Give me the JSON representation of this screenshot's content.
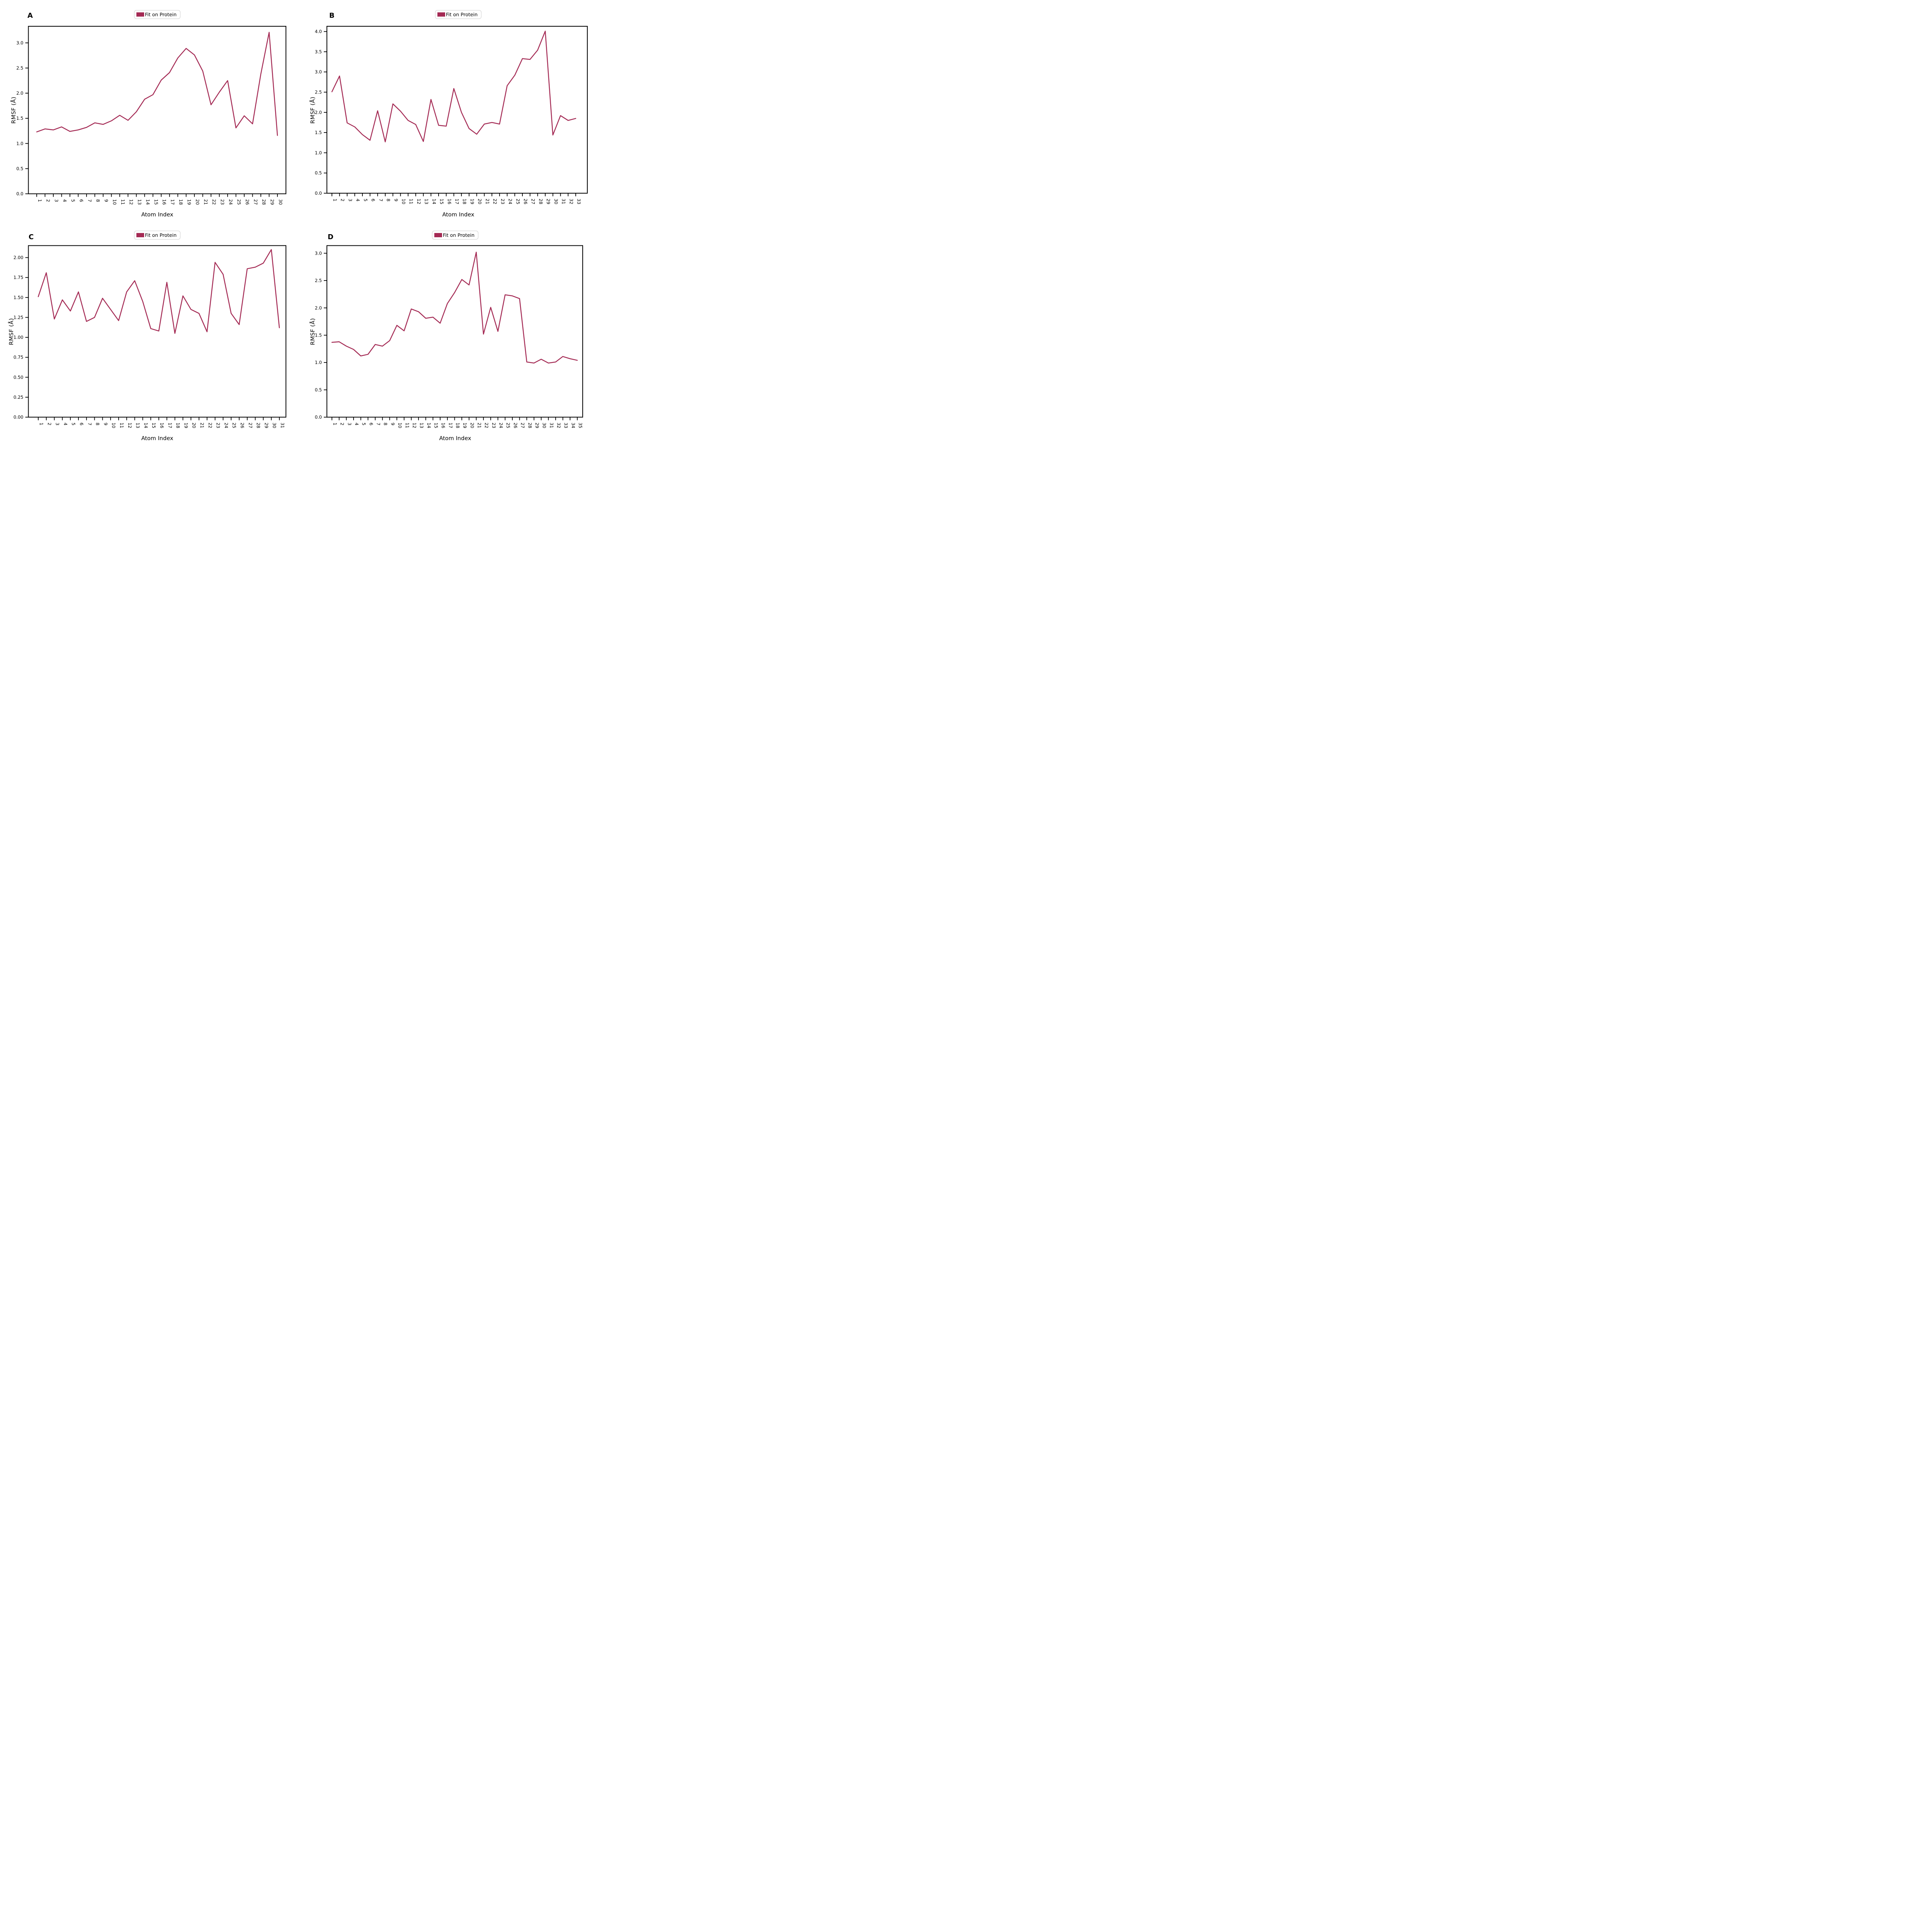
{
  "figure": {
    "type": "multi-panel-line-figure",
    "background": "#ffffff",
    "line_color": "#A42A54",
    "spine_color": "#000000",
    "legend_border_color": "#cfcfcf"
  },
  "panels": [
    {
      "letter": "A",
      "legend_label": "Fit on Protein",
      "xlabel": "Atom Index",
      "ylabel": "RMSF (Å)"
    },
    {
      "letter": "B",
      "legend_label": "Fit on Protein",
      "xlabel": "Atom Index",
      "ylabel": "RMSF (Å)"
    },
    {
      "letter": "C",
      "legend_label": "Fit on Protein",
      "xlabel": "Atom Index",
      "ylabel": "RMSF (Å)"
    },
    {
      "letter": "D",
      "legend_label": "Fit on Protein",
      "xlabel": "Atom Index",
      "ylabel": "RMSF (Å)"
    }
  ],
  "chart_data": [
    {
      "type": "line",
      "panel": "A",
      "legend": "Fit on Protein",
      "xlabel": "Atom Index",
      "ylabel": "RMSF (Å)",
      "x": [
        1,
        2,
        3,
        4,
        5,
        6,
        7,
        8,
        9,
        10,
        11,
        12,
        13,
        14,
        15,
        16,
        17,
        18,
        19,
        20,
        21,
        22,
        23,
        24,
        25,
        26,
        27,
        28,
        29,
        30
      ],
      "values": [
        1.23,
        1.29,
        1.27,
        1.33,
        1.24,
        1.27,
        1.32,
        1.41,
        1.38,
        1.45,
        1.56,
        1.46,
        1.63,
        1.88,
        1.97,
        2.26,
        2.41,
        2.7,
        2.89,
        2.76,
        2.44,
        1.77,
        2.02,
        2.25,
        1.31,
        1.55,
        1.39,
        2.38,
        3.21,
        1.16
      ],
      "ylim": [
        0,
        3.33
      ],
      "yticks": [
        "0.0",
        "0.5",
        "1.0",
        "1.5",
        "2.0",
        "2.5",
        "3.0"
      ],
      "grid": false,
      "legend_position": "top-center-outside"
    },
    {
      "type": "line",
      "panel": "B",
      "legend": "Fit on Protein",
      "xlabel": "Atom Index",
      "ylabel": "RMSF (Å)",
      "x": [
        1,
        2,
        3,
        4,
        5,
        6,
        7,
        8,
        9,
        10,
        11,
        12,
        13,
        14,
        15,
        16,
        17,
        18,
        19,
        20,
        21,
        22,
        23,
        24,
        25,
        26,
        27,
        28,
        29,
        30,
        31,
        32,
        33
      ],
      "values": [
        2.51,
        2.9,
        1.74,
        1.64,
        1.45,
        1.31,
        2.04,
        1.27,
        2.21,
        2.03,
        1.8,
        1.7,
        1.28,
        2.32,
        1.68,
        1.66,
        2.59,
        2.0,
        1.6,
        1.46,
        1.71,
        1.75,
        1.71,
        2.66,
        2.92,
        3.33,
        3.31,
        3.54,
        4.01,
        1.44,
        1.92,
        1.8,
        1.85
      ],
      "ylim": [
        0,
        4.13
      ],
      "yticks": [
        "0.0",
        "0.5",
        "1.0",
        "1.5",
        "2.0",
        "2.5",
        "3.0",
        "3.5",
        "4.0"
      ],
      "grid": false,
      "legend_position": "top-center-outside"
    },
    {
      "type": "line",
      "panel": "C",
      "legend": "Fit on Protein",
      "xlabel": "Atom Index",
      "ylabel": "RMSF (Å)",
      "x": [
        1,
        2,
        3,
        4,
        5,
        6,
        7,
        8,
        9,
        10,
        11,
        12,
        13,
        14,
        15,
        16,
        17,
        18,
        19,
        20,
        21,
        22,
        23,
        24,
        25,
        26,
        27,
        28,
        29,
        30,
        31
      ],
      "values": [
        1.51,
        1.81,
        1.23,
        1.47,
        1.33,
        1.57,
        1.2,
        1.25,
        1.49,
        1.35,
        1.21,
        1.57,
        1.71,
        1.45,
        1.11,
        1.08,
        1.69,
        1.05,
        1.52,
        1.35,
        1.3,
        1.07,
        1.94,
        1.79,
        1.3,
        1.16,
        1.86,
        1.88,
        1.93,
        2.1,
        1.12
      ],
      "ylim": [
        0,
        2.15
      ],
      "yticks": [
        "0.00",
        "0.25",
        "0.50",
        "0.75",
        "1.00",
        "1.25",
        "1.50",
        "1.75",
        "2.00"
      ],
      "grid": false,
      "legend_position": "top-center-outside"
    },
    {
      "type": "line",
      "panel": "D",
      "legend": "Fit on Protein",
      "xlabel": "Atom Index",
      "ylabel": "RMSF (Å)",
      "x": [
        1,
        2,
        3,
        4,
        5,
        6,
        7,
        8,
        9,
        10,
        11,
        12,
        13,
        14,
        15,
        16,
        17,
        18,
        19,
        20,
        21,
        22,
        23,
        24,
        25,
        26,
        27,
        28,
        29,
        30,
        31,
        32,
        33,
        34,
        35
      ],
      "values": [
        1.37,
        1.38,
        1.3,
        1.24,
        1.12,
        1.15,
        1.33,
        1.3,
        1.4,
        1.68,
        1.58,
        1.98,
        1.93,
        1.81,
        1.83,
        1.72,
        2.08,
        2.28,
        2.52,
        2.42,
        3.02,
        1.52,
        2.01,
        1.57,
        2.24,
        2.22,
        2.17,
        1.01,
        0.99,
        1.06,
        0.99,
        1.01,
        1.11,
        1.07,
        1.04
      ],
      "ylim": [
        0,
        3.14
      ],
      "yticks": [
        "0.0",
        "0.5",
        "1.0",
        "1.5",
        "2.0",
        "2.5",
        "3.0"
      ],
      "grid": false,
      "legend_position": "top-center-outside"
    }
  ],
  "layout_note_values_visible_only": true
}
